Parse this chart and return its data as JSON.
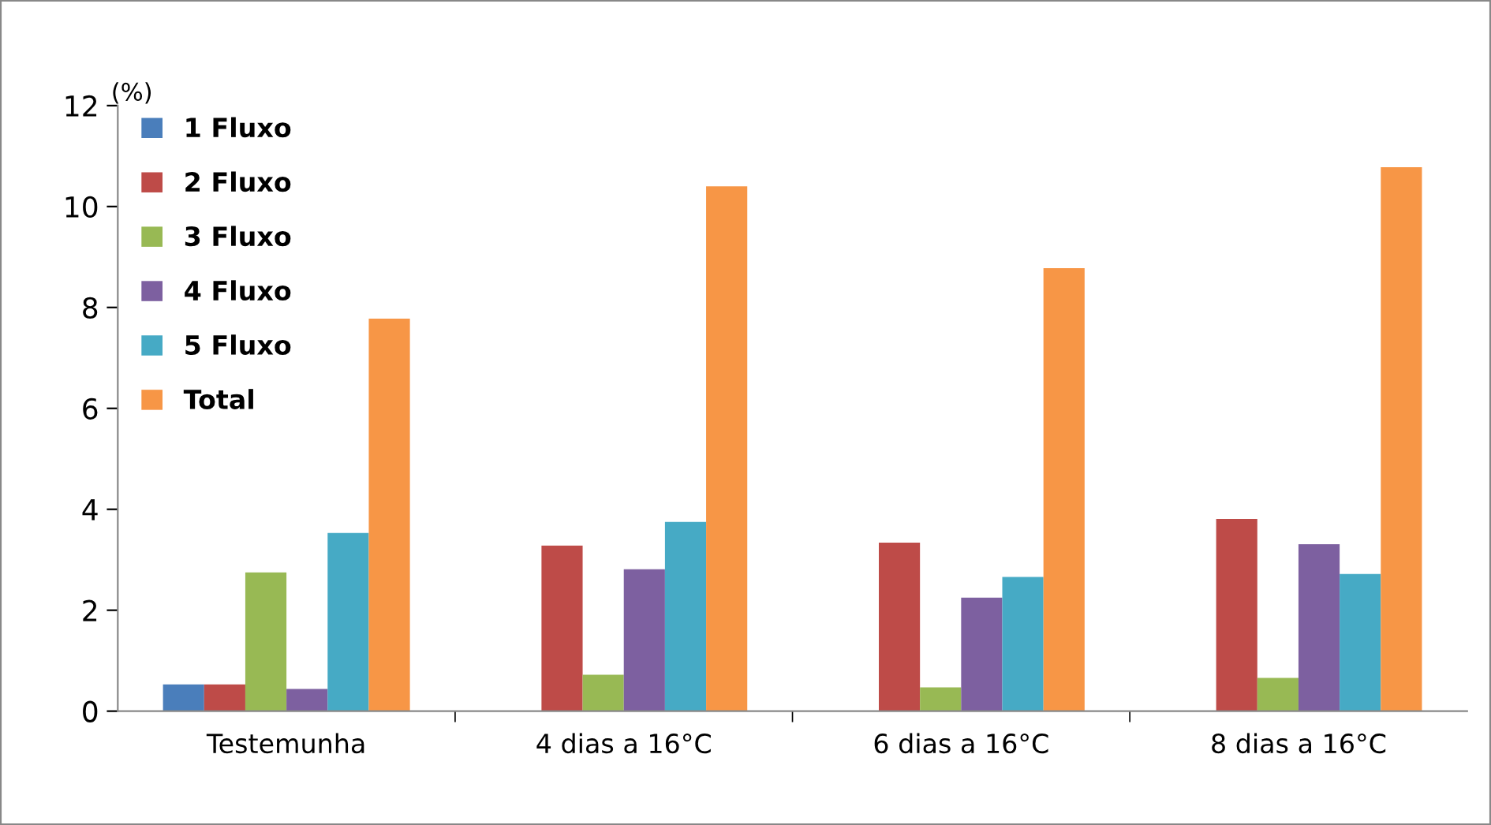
{
  "chart_data": {
    "type": "bar",
    "ylabel": "(%)",
    "categories": [
      "Testemunha",
      "4 dias a 16°C",
      "6 dias a 16°C",
      "8 dias a 16°C"
    ],
    "series": [
      {
        "name": "1 Fluxo",
        "color": "#4a7ebb",
        "values": [
          0.53,
          null,
          null,
          null
        ]
      },
      {
        "name": "2 Fluxo",
        "color": "#be4b48",
        "values": [
          0.53,
          3.28,
          3.34,
          3.81
        ]
      },
      {
        "name": "3 Fluxo",
        "color": "#98b954",
        "values": [
          2.75,
          0.72,
          0.47,
          0.66
        ]
      },
      {
        "name": "4 Fluxo",
        "color": "#7d60a0",
        "values": [
          0.44,
          2.81,
          2.25,
          3.31
        ]
      },
      {
        "name": "5 Fluxo",
        "color": "#46aac5",
        "values": [
          3.53,
          3.75,
          2.66,
          2.72
        ]
      },
      {
        "name": "Total",
        "color": "#f79646",
        "values": [
          7.78,
          10.4,
          8.78,
          10.78
        ]
      }
    ],
    "ylim": [
      0,
      12
    ],
    "yticks": [
      0,
      2,
      4,
      6,
      8,
      10,
      12
    ],
    "grid": false,
    "legend": "top left"
  }
}
